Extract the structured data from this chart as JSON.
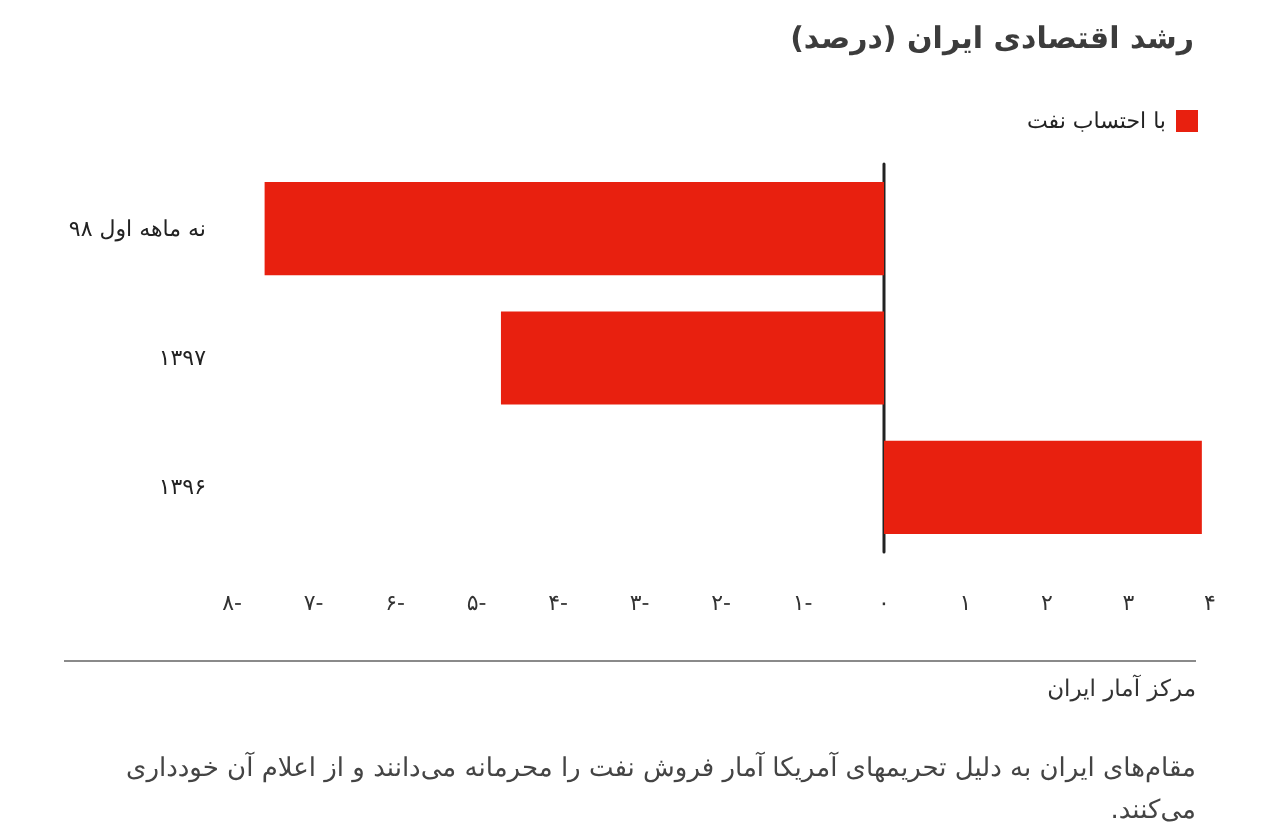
{
  "chart_data": {
    "type": "bar",
    "orientation": "horizontal",
    "title": "رشد اقتصادی ایران (درصد)",
    "categories": [
      "نه ماهه اول ۹۸",
      "۱۳۹۷",
      "۱۳۹۶"
    ],
    "series": [
      {
        "name": "با احتساب نفت",
        "color": "#e8200f",
        "values": [
          -7.6,
          -4.7,
          3.9
        ]
      }
    ],
    "xlim": [
      -8,
      4
    ],
    "xticks": [
      {
        "value": -8,
        "label": "۸-"
      },
      {
        "value": -7,
        "label": "۷-"
      },
      {
        "value": -6,
        "label": "۶-"
      },
      {
        "value": -5,
        "label": "۵-"
      },
      {
        "value": -4,
        "label": "۴-"
      },
      {
        "value": -3,
        "label": "۳-"
      },
      {
        "value": -2,
        "label": "۲-"
      },
      {
        "value": -1,
        "label": "۱-"
      },
      {
        "value": 0,
        "label": "۰"
      },
      {
        "value": 1,
        "label": "۱"
      },
      {
        "value": 2,
        "label": "۲"
      },
      {
        "value": 3,
        "label": "۳"
      },
      {
        "value": 4,
        "label": "۴"
      }
    ],
    "legend": "top right",
    "annotations": [
      "مرکز آمار ایران",
      "مقام‌های ایران به دلیل تحریمهای آمریکا آمار فروش نفت را محرمانه می‌دانند و از اعلام آن خودداری می‌کنند."
    ]
  }
}
